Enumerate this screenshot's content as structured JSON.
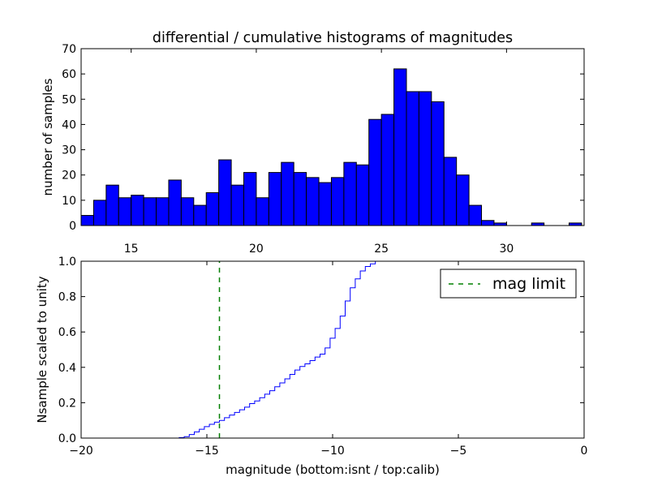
{
  "chart_data": [
    {
      "type": "bar",
      "title": "differential / cumulative histograms of magnitudes",
      "xlabel": "",
      "ylabel": "number of samples",
      "xlim": [
        13.0,
        33.1
      ],
      "ylim": [
        0,
        70
      ],
      "xticks": [
        "15",
        "20",
        "25",
        "30"
      ],
      "xtick_values": [
        15,
        20,
        25,
        30
      ],
      "yticks": [
        "0",
        "10",
        "20",
        "30",
        "40",
        "50",
        "60",
        "70"
      ],
      "ytick_values": [
        0,
        10,
        20,
        30,
        40,
        50,
        60,
        70
      ],
      "bin_start": 13.0,
      "bin_width": 0.5,
      "values": [
        4,
        10,
        16,
        11,
        12,
        11,
        11,
        18,
        11,
        8,
        13,
        26,
        16,
        21,
        11,
        21,
        25,
        21,
        19,
        17,
        19,
        25,
        24,
        42,
        44,
        62,
        53,
        53,
        49,
        27,
        20,
        8,
        2,
        1,
        0,
        0,
        1,
        0,
        0,
        1
      ],
      "color": "#0000ff"
    },
    {
      "type": "line",
      "xlabel": "magnitude (bottom:isnt / top:calib)",
      "ylabel": "Nsample scaled to unity",
      "xlim": [
        -20,
        0
      ],
      "ylim": [
        0,
        1.0
      ],
      "xticks": [
        "−20",
        "−15",
        "−10",
        "−5",
        "0"
      ],
      "xtick_values": [
        -20,
        -15,
        -10,
        -5,
        0
      ],
      "yticks": [
        "0.0",
        "0.2",
        "0.4",
        "0.6",
        "0.8",
        "1.0"
      ],
      "ytick_values": [
        0,
        0.2,
        0.4,
        0.6,
        0.8,
        1.0
      ],
      "step_start": -16.1,
      "step_width": 0.2,
      "step_values": [
        0.003,
        0.008,
        0.02,
        0.035,
        0.05,
        0.065,
        0.078,
        0.09,
        0.1,
        0.115,
        0.13,
        0.145,
        0.16,
        0.175,
        0.195,
        0.21,
        0.228,
        0.248,
        0.268,
        0.29,
        0.312,
        0.335,
        0.36,
        0.385,
        0.405,
        0.42,
        0.438,
        0.458,
        0.475,
        0.51,
        0.565,
        0.62,
        0.69,
        0.775,
        0.85,
        0.9,
        0.945,
        0.97,
        0.985,
        1.0
      ],
      "line_color": "#0000ff",
      "end_x": 0,
      "vline": {
        "x": -14.5,
        "label": "mag limit",
        "color": "#008000",
        "style": "dashed"
      },
      "legend": {
        "entries": [
          "mag limit"
        ],
        "position": "top-right"
      }
    }
  ]
}
